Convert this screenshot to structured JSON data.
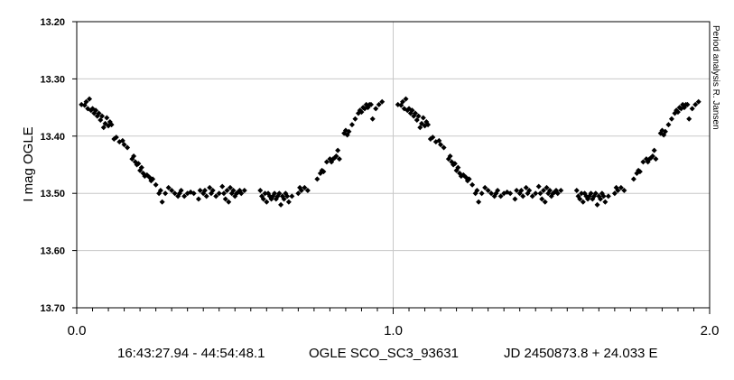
{
  "chart_data": {
    "type": "scatter",
    "ylabel": "I mag OGLE",
    "xlim": [
      0,
      2
    ],
    "ylim": [
      13.2,
      13.7
    ],
    "y_reversed": true,
    "x_ticks": [
      "0.0",
      "1.0",
      "2.0"
    ],
    "y_ticks": [
      "13.20",
      "13.30",
      "13.40",
      "13.50",
      "13.60",
      "13.70"
    ],
    "grid": true,
    "credit": "Period analysis  R. Jansen",
    "caption": {
      "coords": "16:43:27.94 - 44:54:48.1",
      "star": "OGLE SCO_SC3_93631",
      "ephemeris": "JD 2450873.8 + 24.033 E"
    },
    "series": [
      {
        "marker_color": "#000000",
        "points": [
          [
            0.015,
            13.345
          ],
          [
            0.025,
            13.346
          ],
          [
            0.03,
            13.34
          ],
          [
            0.035,
            13.352
          ],
          [
            0.04,
            13.335
          ],
          [
            0.045,
            13.355
          ],
          [
            0.05,
            13.352
          ],
          [
            0.055,
            13.36
          ],
          [
            0.06,
            13.355
          ],
          [
            0.065,
            13.365
          ],
          [
            0.07,
            13.36
          ],
          [
            0.075,
            13.372
          ],
          [
            0.08,
            13.365
          ],
          [
            0.085,
            13.385
          ],
          [
            0.09,
            13.378
          ],
          [
            0.095,
            13.368
          ],
          [
            0.1,
            13.382
          ],
          [
            0.105,
            13.375
          ],
          [
            0.11,
            13.38
          ],
          [
            0.118,
            13.405
          ],
          [
            0.125,
            13.402
          ],
          [
            0.135,
            13.41
          ],
          [
            0.145,
            13.408
          ],
          [
            0.15,
            13.415
          ],
          [
            0.16,
            13.42
          ],
          [
            0.175,
            13.44
          ],
          [
            0.18,
            13.435
          ],
          [
            0.185,
            13.445
          ],
          [
            0.19,
            13.45
          ],
          [
            0.195,
            13.448
          ],
          [
            0.2,
            13.46
          ],
          [
            0.205,
            13.455
          ],
          [
            0.21,
            13.465
          ],
          [
            0.215,
            13.47
          ],
          [
            0.222,
            13.468
          ],
          [
            0.23,
            13.472
          ],
          [
            0.235,
            13.478
          ],
          [
            0.24,
            13.475
          ],
          [
            0.25,
            13.485
          ],
          [
            0.26,
            13.5
          ],
          [
            0.265,
            13.495
          ],
          [
            0.27,
            13.515
          ],
          [
            0.28,
            13.5
          ],
          [
            0.29,
            13.49
          ],
          [
            0.3,
            13.495
          ],
          [
            0.31,
            13.5
          ],
          [
            0.32,
            13.505
          ],
          [
            0.325,
            13.5
          ],
          [
            0.33,
            13.495
          ],
          [
            0.34,
            13.505
          ],
          [
            0.35,
            13.5
          ],
          [
            0.36,
            13.498
          ],
          [
            0.37,
            13.5
          ],
          [
            0.385,
            13.51
          ],
          [
            0.39,
            13.495
          ],
          [
            0.4,
            13.5
          ],
          [
            0.405,
            13.495
          ],
          [
            0.41,
            13.505
          ],
          [
            0.42,
            13.49
          ],
          [
            0.425,
            13.5
          ],
          [
            0.43,
            13.495
          ],
          [
            0.44,
            13.505
          ],
          [
            0.45,
            13.5
          ],
          [
            0.46,
            13.488
          ],
          [
            0.465,
            13.5
          ],
          [
            0.47,
            13.51
          ],
          [
            0.475,
            13.495
          ],
          [
            0.48,
            13.515
          ],
          [
            0.485,
            13.49
          ],
          [
            0.49,
            13.5
          ],
          [
            0.495,
            13.495
          ],
          [
            0.5,
            13.505
          ],
          [
            0.505,
            13.5
          ],
          [
            0.51,
            13.498
          ],
          [
            0.515,
            13.495
          ],
          [
            0.52,
            13.5
          ],
          [
            0.53,
            13.495
          ],
          [
            0.58,
            13.495
          ],
          [
            0.585,
            13.505
          ],
          [
            0.59,
            13.51
          ],
          [
            0.595,
            13.5
          ],
          [
            0.6,
            13.515
          ],
          [
            0.605,
            13.5
          ],
          [
            0.61,
            13.505
          ],
          [
            0.615,
            13.51
          ],
          [
            0.62,
            13.505
          ],
          [
            0.625,
            13.5
          ],
          [
            0.63,
            13.51
          ],
          [
            0.635,
            13.505
          ],
          [
            0.64,
            13.5
          ],
          [
            0.645,
            13.52
          ],
          [
            0.65,
            13.505
          ],
          [
            0.655,
            13.51
          ],
          [
            0.66,
            13.5
          ],
          [
            0.665,
            13.505
          ],
          [
            0.67,
            13.515
          ],
          [
            0.68,
            13.505
          ],
          [
            0.7,
            13.5
          ],
          [
            0.705,
            13.49
          ],
          [
            0.71,
            13.495
          ],
          [
            0.72,
            13.49
          ],
          [
            0.73,
            13.495
          ],
          [
            0.76,
            13.475
          ],
          [
            0.77,
            13.465
          ],
          [
            0.775,
            13.46
          ],
          [
            0.78,
            13.462
          ],
          [
            0.79,
            13.445
          ],
          [
            0.8,
            13.44
          ],
          [
            0.805,
            13.445
          ],
          [
            0.81,
            13.44
          ],
          [
            0.815,
            13.438
          ],
          [
            0.82,
            13.435
          ],
          [
            0.825,
            13.425
          ],
          [
            0.83,
            13.44
          ],
          [
            0.845,
            13.395
          ],
          [
            0.85,
            13.39
          ],
          [
            0.855,
            13.398
          ],
          [
            0.86,
            13.392
          ],
          [
            0.87,
            13.38
          ],
          [
            0.88,
            13.37
          ],
          [
            0.89,
            13.36
          ],
          [
            0.895,
            13.355
          ],
          [
            0.9,
            13.358
          ],
          [
            0.905,
            13.35
          ],
          [
            0.91,
            13.352
          ],
          [
            0.915,
            13.345
          ],
          [
            0.92,
            13.35
          ],
          [
            0.925,
            13.345
          ],
          [
            0.93,
            13.345
          ],
          [
            0.935,
            13.37
          ],
          [
            0.945,
            13.352
          ],
          [
            0.955,
            13.345
          ],
          [
            0.965,
            13.34
          ],
          [
            1.015,
            13.345
          ],
          [
            1.025,
            13.346
          ],
          [
            1.03,
            13.34
          ],
          [
            1.035,
            13.352
          ],
          [
            1.04,
            13.335
          ],
          [
            1.045,
            13.355
          ],
          [
            1.05,
            13.352
          ],
          [
            1.055,
            13.36
          ],
          [
            1.06,
            13.355
          ],
          [
            1.065,
            13.365
          ],
          [
            1.07,
            13.36
          ],
          [
            1.075,
            13.372
          ],
          [
            1.08,
            13.365
          ],
          [
            1.085,
            13.385
          ],
          [
            1.09,
            13.378
          ],
          [
            1.095,
            13.368
          ],
          [
            1.1,
            13.382
          ],
          [
            1.105,
            13.375
          ],
          [
            1.11,
            13.38
          ],
          [
            1.118,
            13.405
          ],
          [
            1.125,
            13.402
          ],
          [
            1.135,
            13.41
          ],
          [
            1.145,
            13.408
          ],
          [
            1.15,
            13.415
          ],
          [
            1.16,
            13.42
          ],
          [
            1.175,
            13.44
          ],
          [
            1.18,
            13.435
          ],
          [
            1.185,
            13.445
          ],
          [
            1.19,
            13.45
          ],
          [
            1.195,
            13.448
          ],
          [
            1.2,
            13.46
          ],
          [
            1.205,
            13.455
          ],
          [
            1.21,
            13.465
          ],
          [
            1.215,
            13.47
          ],
          [
            1.222,
            13.468
          ],
          [
            1.23,
            13.472
          ],
          [
            1.235,
            13.478
          ],
          [
            1.24,
            13.475
          ],
          [
            1.25,
            13.485
          ],
          [
            1.26,
            13.5
          ],
          [
            1.265,
            13.495
          ],
          [
            1.27,
            13.515
          ],
          [
            1.28,
            13.5
          ],
          [
            1.29,
            13.49
          ],
          [
            1.3,
            13.495
          ],
          [
            1.31,
            13.5
          ],
          [
            1.32,
            13.505
          ],
          [
            1.325,
            13.5
          ],
          [
            1.33,
            13.495
          ],
          [
            1.34,
            13.505
          ],
          [
            1.35,
            13.5
          ],
          [
            1.36,
            13.498
          ],
          [
            1.37,
            13.5
          ],
          [
            1.385,
            13.51
          ],
          [
            1.39,
            13.495
          ],
          [
            1.4,
            13.5
          ],
          [
            1.405,
            13.495
          ],
          [
            1.41,
            13.505
          ],
          [
            1.42,
            13.49
          ],
          [
            1.425,
            13.5
          ],
          [
            1.43,
            13.495
          ],
          [
            1.44,
            13.505
          ],
          [
            1.45,
            13.5
          ],
          [
            1.46,
            13.488
          ],
          [
            1.465,
            13.5
          ],
          [
            1.47,
            13.51
          ],
          [
            1.475,
            13.495
          ],
          [
            1.48,
            13.515
          ],
          [
            1.485,
            13.49
          ],
          [
            1.49,
            13.5
          ],
          [
            1.495,
            13.495
          ],
          [
            1.5,
            13.505
          ],
          [
            1.505,
            13.5
          ],
          [
            1.51,
            13.498
          ],
          [
            1.515,
            13.495
          ],
          [
            1.52,
            13.5
          ],
          [
            1.53,
            13.495
          ],
          [
            1.58,
            13.495
          ],
          [
            1.585,
            13.505
          ],
          [
            1.59,
            13.51
          ],
          [
            1.595,
            13.5
          ],
          [
            1.6,
            13.515
          ],
          [
            1.605,
            13.5
          ],
          [
            1.61,
            13.505
          ],
          [
            1.615,
            13.51
          ],
          [
            1.62,
            13.505
          ],
          [
            1.625,
            13.5
          ],
          [
            1.63,
            13.51
          ],
          [
            1.635,
            13.505
          ],
          [
            1.64,
            13.5
          ],
          [
            1.645,
            13.52
          ],
          [
            1.65,
            13.505
          ],
          [
            1.655,
            13.51
          ],
          [
            1.66,
            13.5
          ],
          [
            1.665,
            13.505
          ],
          [
            1.67,
            13.515
          ],
          [
            1.68,
            13.505
          ],
          [
            1.7,
            13.5
          ],
          [
            1.705,
            13.49
          ],
          [
            1.71,
            13.495
          ],
          [
            1.72,
            13.49
          ],
          [
            1.73,
            13.495
          ],
          [
            1.76,
            13.475
          ],
          [
            1.77,
            13.465
          ],
          [
            1.775,
            13.46
          ],
          [
            1.78,
            13.462
          ],
          [
            1.79,
            13.445
          ],
          [
            1.8,
            13.44
          ],
          [
            1.805,
            13.445
          ],
          [
            1.81,
            13.44
          ],
          [
            1.815,
            13.438
          ],
          [
            1.82,
            13.435
          ],
          [
            1.825,
            13.425
          ],
          [
            1.83,
            13.44
          ],
          [
            1.845,
            13.395
          ],
          [
            1.85,
            13.39
          ],
          [
            1.855,
            13.398
          ],
          [
            1.86,
            13.392
          ],
          [
            1.87,
            13.38
          ],
          [
            1.88,
            13.37
          ],
          [
            1.89,
            13.36
          ],
          [
            1.895,
            13.355
          ],
          [
            1.9,
            13.358
          ],
          [
            1.905,
            13.35
          ],
          [
            1.91,
            13.352
          ],
          [
            1.915,
            13.345
          ],
          [
            1.92,
            13.35
          ],
          [
            1.925,
            13.345
          ],
          [
            1.93,
            13.345
          ],
          [
            1.935,
            13.37
          ],
          [
            1.945,
            13.352
          ],
          [
            1.955,
            13.345
          ],
          [
            1.965,
            13.34
          ]
        ]
      }
    ]
  }
}
